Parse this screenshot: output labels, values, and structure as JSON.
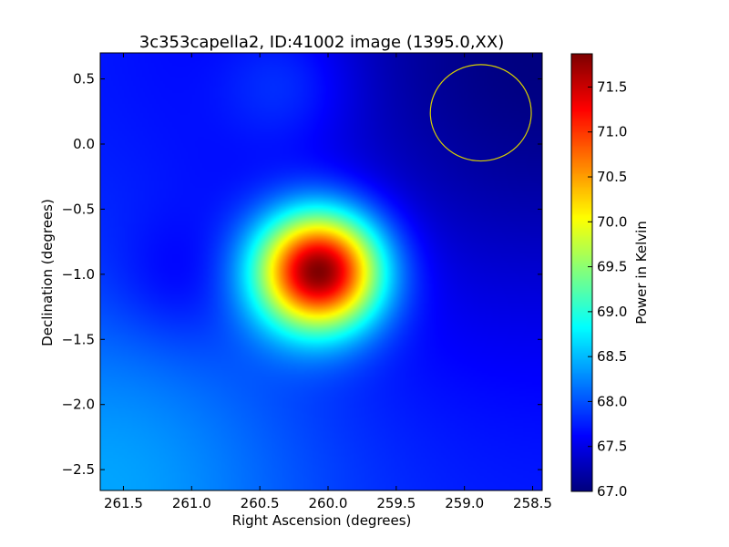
{
  "chart_data": {
    "type": "heatmap",
    "title": "3c353capella2, ID:41002 image (1395.0,XX)",
    "xlabel": "Right Ascension (degrees)",
    "ylabel": "Declination (degrees)",
    "colorbar_label": "Power in Kelvin",
    "colormap": "jet",
    "xlim": [
      261.67,
      258.43
    ],
    "ylim": [
      -2.66,
      0.7
    ],
    "x_ticks": [
      {
        "value": 261.5,
        "label": "261.5"
      },
      {
        "value": 261.0,
        "label": "261.0"
      },
      {
        "value": 260.5,
        "label": "260.5"
      },
      {
        "value": 260.0,
        "label": "260.0"
      },
      {
        "value": 259.5,
        "label": "259.5"
      },
      {
        "value": 259.0,
        "label": "259.0"
      },
      {
        "value": 258.5,
        "label": "258.5"
      }
    ],
    "y_ticks": [
      {
        "value": 0.5,
        "label": "0.5"
      },
      {
        "value": 0.0,
        "label": "0.0"
      },
      {
        "value": -0.5,
        "label": "−0.5"
      },
      {
        "value": -1.0,
        "label": "−1.0"
      },
      {
        "value": -1.5,
        "label": "−1.5"
      },
      {
        "value": -2.0,
        "label": "−2.0"
      },
      {
        "value": -2.5,
        "label": "−2.5"
      }
    ],
    "colorbar_range": [
      67.0,
      71.87
    ],
    "colorbar_ticks": [
      {
        "value": 67.0,
        "label": "67.0"
      },
      {
        "value": 67.5,
        "label": "67.5"
      },
      {
        "value": 68.0,
        "label": "68.0"
      },
      {
        "value": 68.5,
        "label": "68.5"
      },
      {
        "value": 69.0,
        "label": "69.0"
      },
      {
        "value": 69.5,
        "label": "69.5"
      },
      {
        "value": 70.0,
        "label": "70.0"
      },
      {
        "value": 70.5,
        "label": "70.5"
      },
      {
        "value": 71.0,
        "label": "71.0"
      },
      {
        "value": 71.5,
        "label": "71.5"
      }
    ],
    "source_peak": {
      "ra": 260.07,
      "dec": -0.98,
      "value": 71.87
    },
    "beam_circle": {
      "ra": 258.88,
      "dec": 0.24,
      "radius_deg": 0.37,
      "color": "#d8d000"
    },
    "background_components": [
      {
        "ra": 258.43,
        "dec": 0.7,
        "value": 67.0
      },
      {
        "ra": 261.67,
        "dec": -2.66,
        "value": 68.4
      },
      {
        "ra": 261.1,
        "dec": -1.05,
        "value": 67.5
      }
    ],
    "grid": false
  }
}
